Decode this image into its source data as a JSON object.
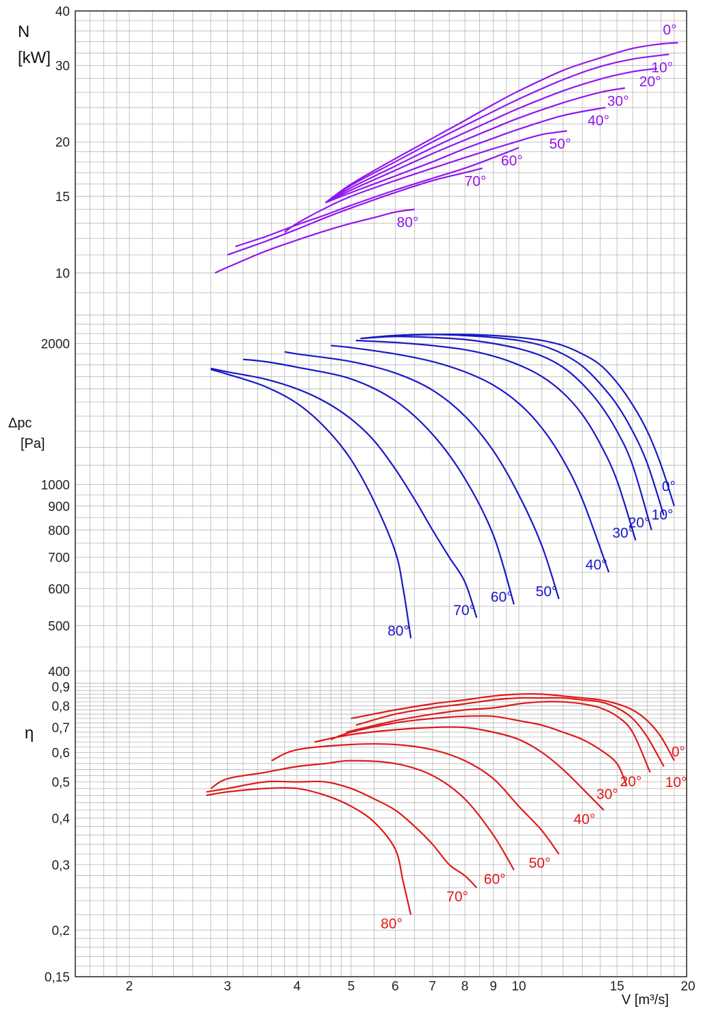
{
  "chart_data": [
    {
      "type": "line",
      "ylabel": "N\n[kW]",
      "yscale": "log",
      "ylim": [
        8,
        40
      ],
      "yticks": [
        "40",
        "30",
        "20",
        "15",
        "10"
      ],
      "color": "#9015f0",
      "series": [
        {
          "name": "0°",
          "x": [
            4.5,
            5,
            6,
            7,
            8,
            9,
            10,
            12,
            14,
            16,
            18,
            19.3
          ],
          "y": [
            14.5,
            16.0,
            18.3,
            20.4,
            22.4,
            24.4,
            26.2,
            29.2,
            31.2,
            32.8,
            33.6,
            33.8
          ]
        },
        {
          "name": "10°",
          "x": [
            4.5,
            5,
            6,
            7,
            8,
            9,
            10,
            12,
            14,
            16,
            18.6
          ],
          "y": [
            14.5,
            15.9,
            18.0,
            20.0,
            21.8,
            23.5,
            25.1,
            27.8,
            29.8,
            31.0,
            31.8
          ]
        },
        {
          "name": "20°",
          "x": [
            4.5,
            5,
            6,
            7,
            8,
            9,
            10,
            12,
            14,
            16,
            17.7
          ],
          "y": [
            14.5,
            15.7,
            17.6,
            19.4,
            21.0,
            22.5,
            23.9,
            26.2,
            27.9,
            29.0,
            29.5
          ]
        },
        {
          "name": "30°",
          "x": [
            4.5,
            5,
            6,
            7,
            8,
            9,
            10,
            12,
            14,
            15.5
          ],
          "y": [
            14.5,
            15.5,
            17.2,
            18.8,
            20.2,
            21.5,
            22.7,
            24.6,
            26.0,
            26.6
          ]
        },
        {
          "name": "40°",
          "x": [
            4.5,
            5,
            6,
            7,
            8,
            9,
            10,
            12,
            14.3
          ],
          "y": [
            14.5,
            15.3,
            16.7,
            18.0,
            19.3,
            20.4,
            21.4,
            23.0,
            24.0
          ]
        },
        {
          "name": "50°",
          "x": [
            3.8,
            4,
            4.5,
            5,
            6,
            7,
            8,
            9,
            10,
            11,
            12.2
          ],
          "y": [
            12.4,
            13.0,
            14.1,
            15.0,
            16.3,
            17.4,
            18.4,
            19.3,
            20.1,
            20.8,
            21.2
          ]
        },
        {
          "name": "60°",
          "x": [
            3.1,
            3.5,
            4,
            4.5,
            5,
            6,
            7,
            8,
            9,
            10
          ],
          "y": [
            11.5,
            12.1,
            12.9,
            13.6,
            14.3,
            15.5,
            16.5,
            17.4,
            18.4,
            19.4
          ]
        },
        {
          "name": "70°",
          "x": [
            3,
            3.5,
            4,
            4.5,
            5,
            6,
            7,
            8,
            8.6
          ],
          "y": [
            11.0,
            11.8,
            12.6,
            13.4,
            14.1,
            15.3,
            16.3,
            17.0,
            17.4
          ]
        },
        {
          "name": "80°",
          "x": [
            2.85,
            3,
            3.5,
            4,
            4.5,
            5,
            5.5,
            6,
            6.5
          ],
          "y": [
            10.0,
            10.3,
            11.2,
            11.9,
            12.5,
            13.0,
            13.4,
            13.8,
            14.0
          ]
        }
      ]
    },
    {
      "type": "line",
      "ylabel": "Δpc\n[Pa]",
      "yscale": "log",
      "ylim": [
        380,
        2300
      ],
      "yticks": [
        "2000",
        "1000",
        "900",
        "800",
        "700",
        "600",
        "500",
        "400"
      ],
      "color": "#1717c8",
      "series": [
        {
          "name": "0°",
          "x": [
            5.2,
            6,
            7,
            8,
            9,
            10,
            11,
            12,
            13,
            14,
            15,
            16,
            17,
            18,
            19
          ],
          "y": [
            2050,
            2080,
            2090,
            2090,
            2080,
            2060,
            2030,
            1980,
            1900,
            1800,
            1650,
            1480,
            1300,
            1100,
            900
          ]
        },
        {
          "name": "10°",
          "x": [
            5.2,
            6,
            7,
            8,
            9,
            10,
            11,
            12,
            13,
            14,
            15,
            16,
            17,
            18.2
          ],
          "y": [
            2050,
            2080,
            2090,
            2080,
            2060,
            2030,
            1980,
            1900,
            1790,
            1640,
            1480,
            1300,
            1110,
            860
          ]
        },
        {
          "name": "20°",
          "x": [
            5.2,
            6,
            7,
            8,
            9,
            10,
            11,
            12,
            13,
            14,
            15,
            16,
            17.3
          ],
          "y": [
            2050,
            2070,
            2060,
            2040,
            2000,
            1950,
            1880,
            1780,
            1640,
            1480,
            1300,
            1100,
            800
          ]
        },
        {
          "name": "30°",
          "x": [
            5.1,
            6,
            7,
            8,
            9,
            10,
            11,
            12,
            13,
            14,
            15,
            16.2
          ],
          "y": [
            2030,
            2010,
            1980,
            1940,
            1880,
            1800,
            1700,
            1570,
            1410,
            1220,
            1020,
            760
          ]
        },
        {
          "name": "40°",
          "x": [
            4.6,
            5,
            6,
            7,
            8,
            9,
            10,
            11,
            12,
            13,
            14.5
          ],
          "y": [
            1980,
            1960,
            1900,
            1830,
            1740,
            1630,
            1490,
            1320,
            1130,
            930,
            650
          ]
        },
        {
          "name": "50°",
          "x": [
            3.8,
            4,
            5,
            6,
            7,
            8,
            9,
            10,
            11,
            11.8
          ],
          "y": [
            1920,
            1900,
            1830,
            1730,
            1590,
            1400,
            1180,
            950,
            740,
            570
          ]
        },
        {
          "name": "60°",
          "x": [
            3.2,
            3.5,
            4,
            5,
            6,
            7,
            8,
            9,
            9.8
          ],
          "y": [
            1850,
            1830,
            1780,
            1680,
            1510,
            1280,
            1030,
            780,
            555
          ]
        },
        {
          "name": "70°",
          "x": [
            2.8,
            3,
            3.5,
            4,
            4.5,
            5,
            5.5,
            6,
            6.5,
            7,
            7.5,
            8,
            8.4
          ],
          "y": [
            1770,
            1740,
            1680,
            1600,
            1500,
            1380,
            1240,
            1080,
            930,
            800,
            700,
            620,
            520
          ]
        },
        {
          "name": "80°",
          "x": [
            2.8,
            3,
            3.5,
            4,
            4.5,
            5,
            5.5,
            6,
            6.2,
            6.4
          ],
          "y": [
            1760,
            1720,
            1620,
            1490,
            1320,
            1130,
            920,
            720,
            600,
            470
          ]
        }
      ]
    },
    {
      "type": "line",
      "ylabel": "η",
      "yscale": "log",
      "xscale": "log",
      "xlabel": "V [m³/s]",
      "xlim": [
        1.6,
        20
      ],
      "ylim": [
        0.15,
        0.93
      ],
      "xticks": [
        "2",
        "3",
        "4",
        "5",
        "6",
        "7",
        "8",
        "9",
        "10",
        "15",
        "20"
      ],
      "yticks": [
        "0,9",
        "0,8",
        "0,7",
        "0,6",
        "0,5",
        "0,4",
        "0,3",
        "0,2",
        "0,15"
      ],
      "color": "#e01818",
      "series": [
        {
          "name": "0°",
          "x": [
            5,
            6,
            7,
            8,
            9,
            10,
            11,
            12,
            13,
            14,
            15,
            16,
            17,
            18,
            19
          ],
          "y": [
            0.74,
            0.78,
            0.81,
            0.83,
            0.85,
            0.86,
            0.86,
            0.85,
            0.84,
            0.83,
            0.81,
            0.78,
            0.73,
            0.66,
            0.57
          ]
        },
        {
          "name": "10°",
          "x": [
            5.1,
            6,
            7,
            8,
            9,
            10,
            11,
            12,
            13,
            14,
            15,
            16,
            17,
            18.2
          ],
          "y": [
            0.71,
            0.76,
            0.79,
            0.81,
            0.83,
            0.84,
            0.84,
            0.84,
            0.83,
            0.82,
            0.79,
            0.74,
            0.66,
            0.55
          ]
        },
        {
          "name": "20°",
          "x": [
            4.9,
            6,
            7,
            8,
            9,
            10,
            11,
            12,
            13,
            14,
            15,
            16,
            17.2
          ],
          "y": [
            0.68,
            0.73,
            0.76,
            0.78,
            0.79,
            0.81,
            0.82,
            0.82,
            0.81,
            0.79,
            0.75,
            0.68,
            0.53
          ]
        },
        {
          "name": "30°",
          "x": [
            4.6,
            5,
            6,
            7,
            8,
            9,
            10,
            11,
            12,
            13,
            14,
            15,
            15.6
          ],
          "y": [
            0.65,
            0.68,
            0.72,
            0.74,
            0.75,
            0.75,
            0.73,
            0.71,
            0.68,
            0.65,
            0.61,
            0.56,
            0.49
          ]
        },
        {
          "name": "40°",
          "x": [
            4.3,
            5,
            6,
            7,
            8,
            9,
            10,
            11,
            12,
            13,
            14.2
          ],
          "y": [
            0.64,
            0.67,
            0.69,
            0.7,
            0.7,
            0.68,
            0.65,
            0.6,
            0.54,
            0.48,
            0.42
          ]
        },
        {
          "name": "50°",
          "x": [
            3.6,
            4,
            5,
            6,
            7,
            8,
            9,
            10,
            11,
            11.8
          ],
          "y": [
            0.57,
            0.61,
            0.63,
            0.63,
            0.61,
            0.57,
            0.51,
            0.43,
            0.37,
            0.32
          ]
        },
        {
          "name": "60°",
          "x": [
            2.8,
            3,
            3.5,
            4,
            4.5,
            5,
            6,
            7,
            8,
            9,
            9.8
          ],
          "y": [
            0.48,
            0.51,
            0.53,
            0.55,
            0.56,
            0.57,
            0.56,
            0.52,
            0.45,
            0.36,
            0.29
          ]
        },
        {
          "name": "70°",
          "x": [
            2.75,
            3,
            3.5,
            4,
            4.5,
            5,
            5.5,
            6,
            6.5,
            7,
            7.5,
            8,
            8.4
          ],
          "y": [
            0.47,
            0.48,
            0.5,
            0.5,
            0.5,
            0.48,
            0.45,
            0.42,
            0.38,
            0.34,
            0.3,
            0.28,
            0.26
          ]
        },
        {
          "name": "80°",
          "x": [
            2.75,
            3,
            3.5,
            4,
            4.5,
            5,
            5.5,
            6,
            6.2,
            6.4
          ],
          "y": [
            0.46,
            0.47,
            0.48,
            0.48,
            0.46,
            0.43,
            0.39,
            0.33,
            0.27,
            0.22
          ]
        }
      ]
    }
  ]
}
